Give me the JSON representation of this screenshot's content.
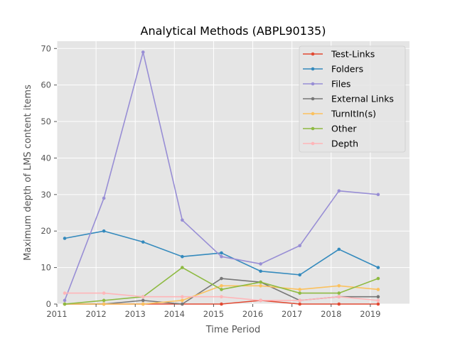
{
  "chart_data": {
    "type": "line",
    "title": "Analytical Methods (ABPL90135)",
    "xlabel": "Time Period",
    "ylabel": "Maximum depth of LMS content items",
    "xlim": [
      2011,
      2020
    ],
    "ylim": [
      0,
      72
    ],
    "xticks": [
      "2011",
      "2012",
      "2013",
      "2014",
      "2015",
      "2016",
      "2017",
      "2018",
      "2019"
    ],
    "yticks": [
      "0",
      "10",
      "20",
      "30",
      "40",
      "50",
      "60",
      "70"
    ],
    "x": [
      2011.2,
      2012.2,
      2013.2,
      2014.2,
      2015.2,
      2016.2,
      2017.2,
      2018.2,
      2019.2
    ],
    "grid": true,
    "legend_position": "top-right",
    "series": [
      {
        "name": "Test-Links",
        "color": "#e24a33",
        "values": [
          0,
          0,
          0,
          0,
          0,
          1,
          0,
          0,
          0
        ]
      },
      {
        "name": "Folders",
        "color": "#348abd",
        "values": [
          18,
          20,
          17,
          13,
          14,
          9,
          8,
          15,
          10
        ]
      },
      {
        "name": "Files",
        "color": "#988ed5",
        "values": [
          1,
          29,
          69,
          23,
          13,
          11,
          16,
          31,
          30
        ]
      },
      {
        "name": "External Links",
        "color": "#777777",
        "values": [
          0,
          0,
          1,
          0,
          7,
          6,
          1,
          2,
          2
        ]
      },
      {
        "name": "TurnItIn(s)",
        "color": "#fbc15e",
        "values": [
          0,
          0,
          0,
          1,
          5,
          5,
          4,
          5,
          4
        ]
      },
      {
        "name": "Other",
        "color": "#8eba42",
        "values": [
          0,
          1,
          2,
          10,
          4,
          6,
          3,
          3,
          7
        ]
      },
      {
        "name": "Depth",
        "color": "#ffb5b8",
        "values": [
          3,
          3,
          2,
          2,
          2,
          1,
          1,
          2,
          1
        ]
      }
    ]
  }
}
